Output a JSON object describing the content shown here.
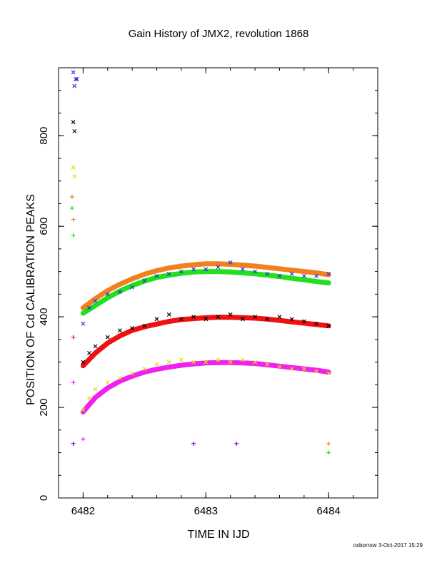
{
  "chart_data": {
    "type": "scatter",
    "title": "Gain History of JMX2, revolution 1868",
    "xlabel": "TIME IN IJD",
    "ylabel": "POSITION OF Cd CALIBRATION PEAKS",
    "xlim": [
      6481.8,
      6484.4
    ],
    "ylim": [
      0,
      950
    ],
    "xticks": [
      "6482",
      "6483",
      "6484"
    ],
    "yticks": [
      "0",
      "200",
      "400",
      "600",
      "800"
    ],
    "grid": false,
    "legend": "none",
    "series": [
      {
        "marker": "x",
        "color": "#3030d0",
        "x": [
          6481.92,
          6481.93,
          6481.94,
          6481.95,
          6482.0,
          6482.05,
          6482.1,
          6482.2,
          6482.3,
          6482.4,
          6482.5,
          6482.6,
          6482.7,
          6482.8,
          6482.9,
          6483.0,
          6483.1,
          6483.2,
          6483.3,
          6483.4,
          6483.5,
          6483.6,
          6483.7,
          6483.8,
          6483.9,
          6484.0
        ],
        "y": [
          940,
          910,
          925,
          925,
          385,
          420,
          435,
          450,
          455,
          465,
          480,
          490,
          495,
          500,
          505,
          505,
          510,
          520,
          505,
          500,
          495,
          490,
          495,
          490,
          490,
          495
        ]
      },
      {
        "marker": "x",
        "color": "#000000",
        "x": [
          6481.92,
          6481.93,
          6482.0,
          6482.05,
          6482.1,
          6482.2,
          6482.3,
          6482.4,
          6482.5,
          6482.6,
          6482.7,
          6482.8,
          6482.9,
          6483.0,
          6483.1,
          6483.2,
          6483.3,
          6483.4,
          6483.5,
          6483.6,
          6483.7,
          6483.8,
          6483.9,
          6484.0
        ],
        "y": [
          830,
          810,
          300,
          320,
          335,
          355,
          370,
          375,
          380,
          395,
          405,
          395,
          400,
          395,
          400,
          405,
          395,
          400,
          395,
          400,
          395,
          390,
          385,
          380
        ]
      },
      {
        "marker": "x",
        "color": "#e0e000",
        "x": [
          6481.92,
          6481.93,
          6482.0,
          6482.05,
          6482.1,
          6482.2,
          6482.3,
          6482.4,
          6482.5,
          6482.6,
          6482.7,
          6482.8,
          6482.9,
          6483.0,
          6483.1,
          6483.2,
          6483.3,
          6483.4,
          6483.5,
          6483.6,
          6483.7,
          6483.8,
          6483.9,
          6484.0
        ],
        "y": [
          730,
          710,
          195,
          220,
          240,
          255,
          265,
          275,
          285,
          295,
          300,
          305,
          300,
          300,
          305,
          300,
          305,
          300,
          295,
          290,
          285,
          285,
          280,
          275
        ]
      },
      {
        "marker": "line",
        "color": "#f08020",
        "x": [
          6482.0,
          6482.1,
          6482.2,
          6482.3,
          6482.4,
          6482.5,
          6482.6,
          6482.7,
          6482.8,
          6482.9,
          6483.0,
          6483.1,
          6483.2,
          6483.3,
          6483.4,
          6483.5,
          6483.6,
          6483.7,
          6483.8,
          6483.9,
          6484.0
        ],
        "y": [
          420,
          440,
          458,
          472,
          484,
          494,
          502,
          508,
          512,
          515,
          517,
          517,
          516,
          514,
          512,
          509,
          506,
          503,
          500,
          497,
          493
        ]
      },
      {
        "marker": "line",
        "color": "#20e020",
        "x": [
          6482.0,
          6482.1,
          6482.2,
          6482.3,
          6482.4,
          6482.5,
          6482.6,
          6482.7,
          6482.8,
          6482.9,
          6483.0,
          6483.1,
          6483.2,
          6483.3,
          6483.4,
          6483.5,
          6483.6,
          6483.7,
          6483.8,
          6483.9,
          6484.0
        ],
        "y": [
          408,
          425,
          442,
          457,
          469,
          479,
          487,
          492,
          496,
          499,
          500,
          500,
          499,
          497,
          495,
          492,
          489,
          485,
          482,
          478,
          475
        ]
      },
      {
        "marker": "line",
        "color": "#f01010",
        "x": [
          6482.0,
          6482.1,
          6482.2,
          6482.3,
          6482.4,
          6482.5,
          6482.6,
          6482.7,
          6482.8,
          6482.9,
          6483.0,
          6483.1,
          6483.2,
          6483.3,
          6483.4,
          6483.5,
          6483.6,
          6483.7,
          6483.8,
          6483.9,
          6484.0
        ],
        "y": [
          292,
          320,
          342,
          358,
          370,
          378,
          384,
          390,
          394,
          396,
          398,
          399,
          399,
          398,
          397,
          395,
          392,
          389,
          386,
          383,
          380
        ]
      },
      {
        "marker": "line",
        "color": "#f020f0",
        "x": [
          6482.0,
          6482.1,
          6482.2,
          6482.3,
          6482.4,
          6482.5,
          6482.6,
          6482.7,
          6482.8,
          6482.9,
          6483.0,
          6483.1,
          6483.2,
          6483.3,
          6483.4,
          6483.5,
          6483.6,
          6483.7,
          6483.8,
          6483.9,
          6484.0
        ],
        "y": [
          190,
          222,
          243,
          258,
          269,
          278,
          284,
          289,
          293,
          296,
          298,
          299,
          299,
          298,
          297,
          294,
          291,
          288,
          285,
          282,
          278
        ]
      }
    ],
    "outliers": [
      {
        "color": "#f08020",
        "x": 6481.91,
        "y": 665
      },
      {
        "color": "#f08020",
        "x": 6481.92,
        "y": 615
      },
      {
        "color": "#20e020",
        "x": 6481.91,
        "y": 640
      },
      {
        "color": "#20e020",
        "x": 6481.92,
        "y": 580
      },
      {
        "color": "#f01010",
        "x": 6481.92,
        "y": 355
      },
      {
        "color": "#f020f0",
        "x": 6481.92,
        "y": 255
      },
      {
        "color": "#8000c0",
        "x": 6481.92,
        "y": 120
      },
      {
        "color": "#f020f0",
        "x": 6482.0,
        "y": 130
      },
      {
        "color": "#8000c0",
        "x": 6482.9,
        "y": 120
      },
      {
        "color": "#8000c0",
        "x": 6483.25,
        "y": 120
      },
      {
        "color": "#f08020",
        "x": 6484.0,
        "y": 120
      },
      {
        "color": "#20e020",
        "x": 6484.0,
        "y": 100
      }
    ]
  },
  "footer": {
    "credit": "oxborrow  3-Oct-2017 15:29"
  }
}
